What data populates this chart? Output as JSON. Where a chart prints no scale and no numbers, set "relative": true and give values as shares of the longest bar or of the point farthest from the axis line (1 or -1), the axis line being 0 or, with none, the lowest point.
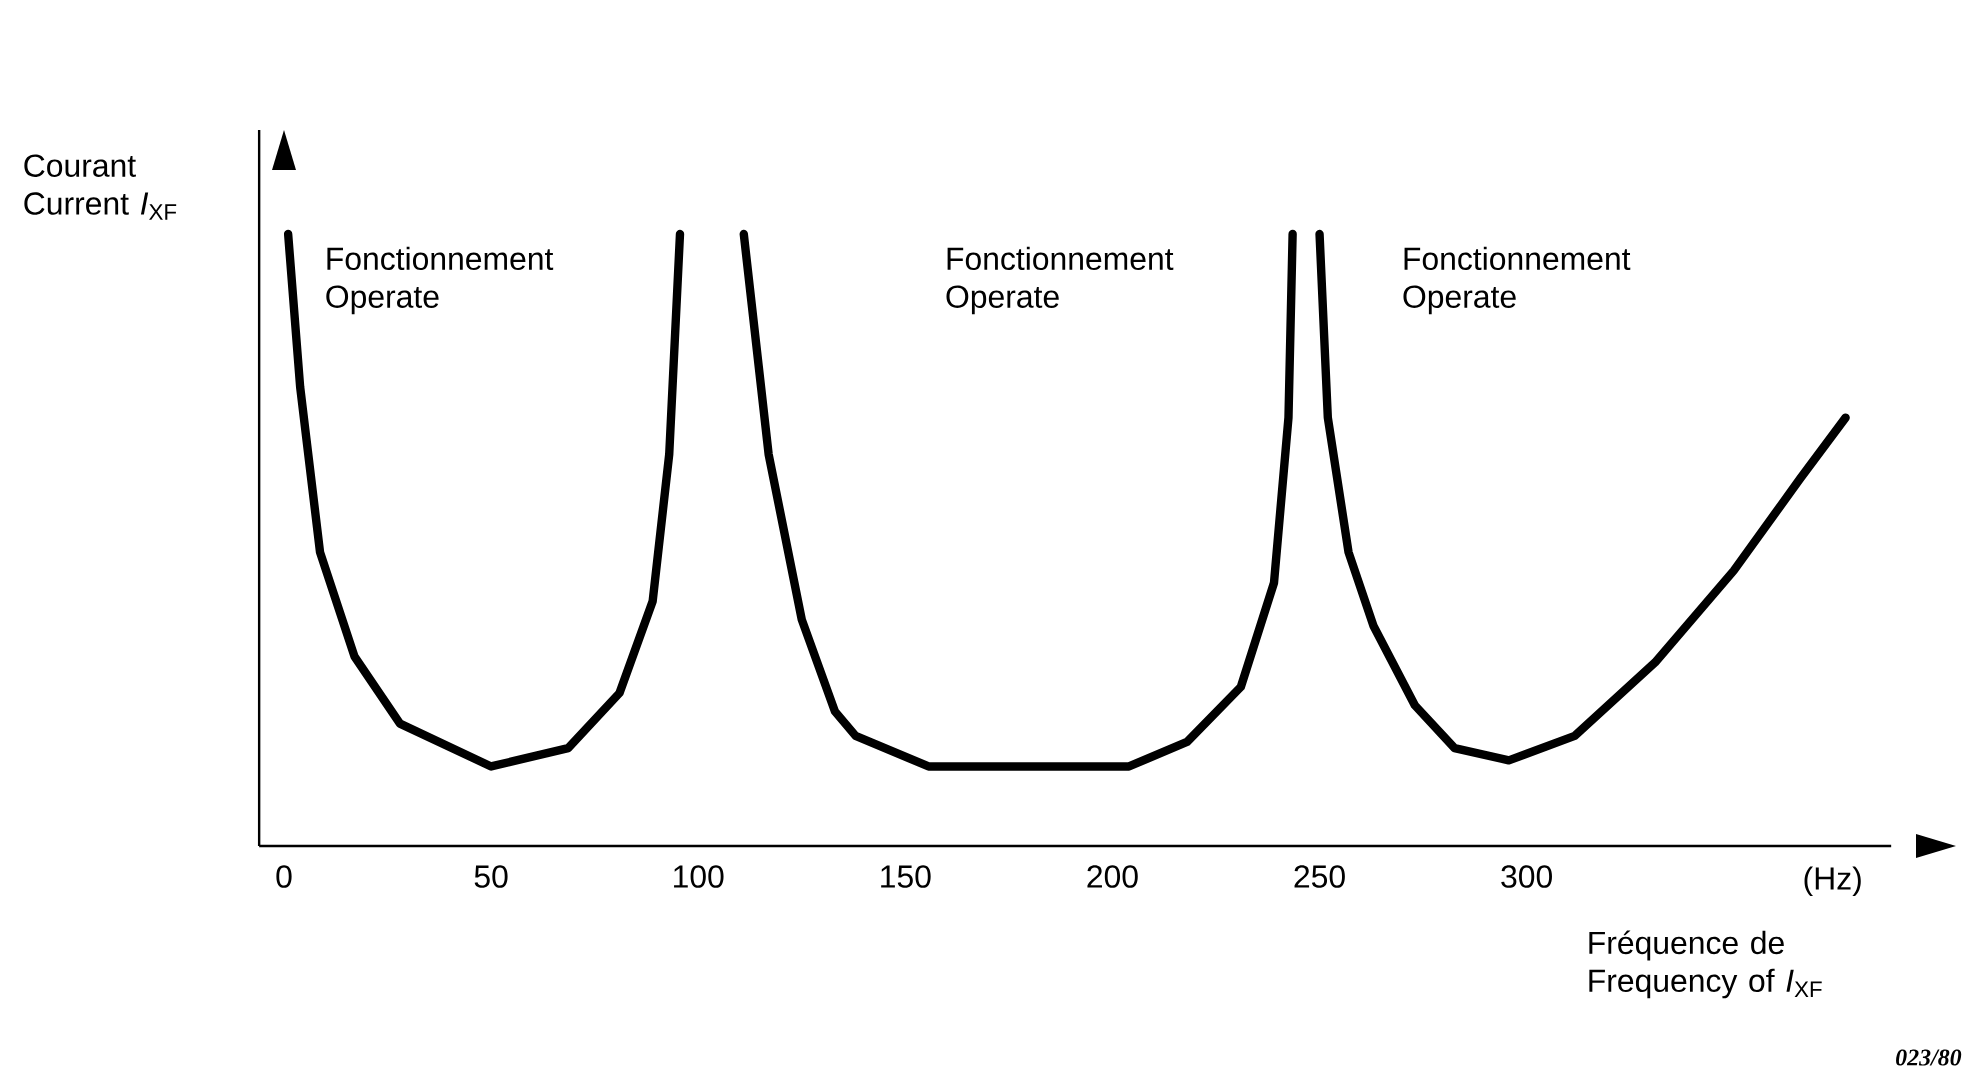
{
  "chart_data": {
    "type": "line",
    "relative": true,
    "xlabel": "Fréquence de Frequency of *I*$_{XF}$",
    "ylabel": "Courant Current *I*$_{XF}$",
    "xlim": [
      -6,
      388
    ],
    "xticks": [
      0,
      50,
      100,
      150,
      200,
      250,
      300
    ],
    "tick_labels": "x",
    "grid": false,
    "marker": "none",
    "line_style": "solid",
    "series": [
      {
        "color": "#000000",
        "x": [
          1,
          3.9,
          8.7,
          17,
          28,
          50,
          68.6,
          81,
          89,
          93,
          95.6
        ],
        "values": [
          1,
          0.75,
          0.48,
          0.31,
          0.2,
          0.13,
          0.16,
          0.25,
          0.4,
          0.64,
          1
        ]
      },
      {
        "color": "#000000",
        "x": [
          111,
          117,
          125,
          133,
          138,
          155.6,
          204,
          218,
          231,
          239,
          242.5,
          243.5
        ],
        "values": [
          1,
          0.64,
          0.37,
          0.22,
          0.18,
          0.13,
          0.13,
          0.17,
          0.26,
          0.43,
          0.7,
          1
        ]
      },
      {
        "color": "#000000",
        "x": [
          250,
          252,
          257,
          263,
          273,
          282.6,
          295.7,
          311.6,
          331,
          350,
          366,
          377
        ],
        "values": [
          1,
          0.7,
          0.48,
          0.36,
          0.23,
          0.16,
          0.14,
          0.18,
          0.3,
          0.45,
          0.6,
          0.7
        ]
      }
    ],
    "annotations": [
      "Fonctionnement Operate",
      "Fonctionnement Operate",
      "Fonctionnement Operate",
      "(Hz)",
      "023/80"
    ]
  }
}
